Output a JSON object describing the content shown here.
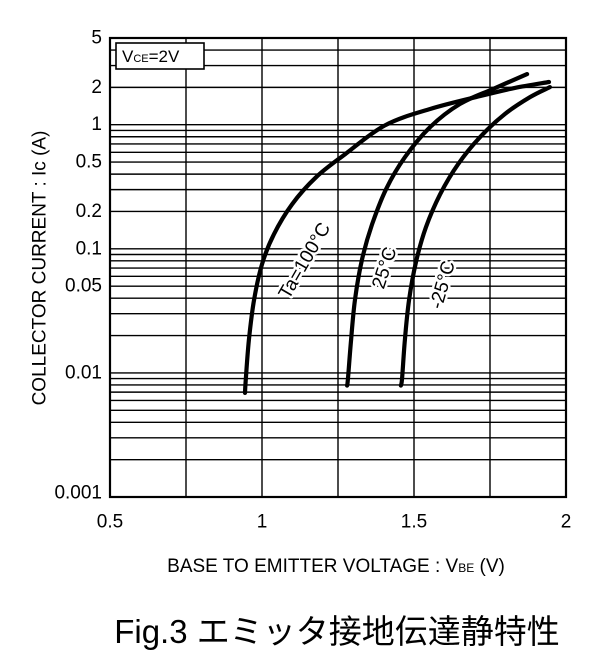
{
  "chart_data": {
    "type": "line",
    "caption": "Fig.3 エミッタ接地伝達静特性",
    "xlabel": {
      "text": "BASE TO EMITTER VOLTAGE : V",
      "sub": "BE",
      "tail": " (V)"
    },
    "ylabel": "COLLECTOR CURRENT : Ic (A)",
    "xscale": "linear",
    "yscale": "log",
    "xlim": [
      0.5,
      2
    ],
    "ylim": [
      0.001,
      5
    ],
    "grid": true,
    "x_grid": [
      0.75,
      1,
      1.25,
      1.5,
      1.75
    ],
    "legend": "inline",
    "x_ticks": [
      {
        "value": 0.5,
        "label": "0.5"
      },
      {
        "value": 1,
        "label": "1"
      },
      {
        "value": 1.5,
        "label": "1.5"
      },
      {
        "value": 2,
        "label": "2"
      }
    ],
    "y_ticks": [
      {
        "value": 5,
        "label": "5"
      },
      {
        "value": 2,
        "label": "2"
      },
      {
        "value": 1,
        "label": "1"
      },
      {
        "value": 0.5,
        "label": "0.5"
      },
      {
        "value": 0.2,
        "label": "0.2"
      },
      {
        "value": 0.1,
        "label": "0.1"
      },
      {
        "value": 0.05,
        "label": "0.05"
      },
      {
        "value": 0.01,
        "label": "0.01"
      },
      {
        "value": 0.001,
        "label": "0.001"
      }
    ],
    "annotation": {
      "text": "V",
      "sub": "CE",
      "tail": "=2V"
    },
    "series": [
      {
        "name": "Ta=100°C",
        "x": [
          0.944,
          0.947,
          0.957,
          0.974,
          1.0,
          1.039,
          1.099,
          1.178,
          1.273,
          1.405,
          1.553,
          1.717,
          1.832,
          1.944
        ],
        "y": [
          0.0069,
          0.0091,
          0.0185,
          0.039,
          0.075,
          0.131,
          0.229,
          0.378,
          0.578,
          0.99,
          1.34,
          1.7,
          1.98,
          2.21
        ]
      },
      {
        "name": "25°C",
        "x": [
          1.28,
          1.283,
          1.293,
          1.306,
          1.329,
          1.362,
          1.408,
          1.47,
          1.553,
          1.651,
          1.76,
          1.872
        ],
        "y": [
          0.0079,
          0.0091,
          0.0185,
          0.039,
          0.082,
          0.157,
          0.302,
          0.547,
          0.957,
          1.47,
          1.94,
          2.56
        ]
      },
      {
        "name": "-25°C",
        "x": [
          1.457,
          1.461,
          1.47,
          1.484,
          1.507,
          1.539,
          1.586,
          1.645,
          1.717,
          1.799,
          1.882,
          1.947
        ],
        "y": [
          0.0079,
          0.0091,
          0.0185,
          0.039,
          0.079,
          0.149,
          0.275,
          0.481,
          0.794,
          1.22,
          1.67,
          2.01
        ]
      }
    ],
    "colors": {
      "line": "#000000",
      "background": "#ffffff"
    }
  }
}
